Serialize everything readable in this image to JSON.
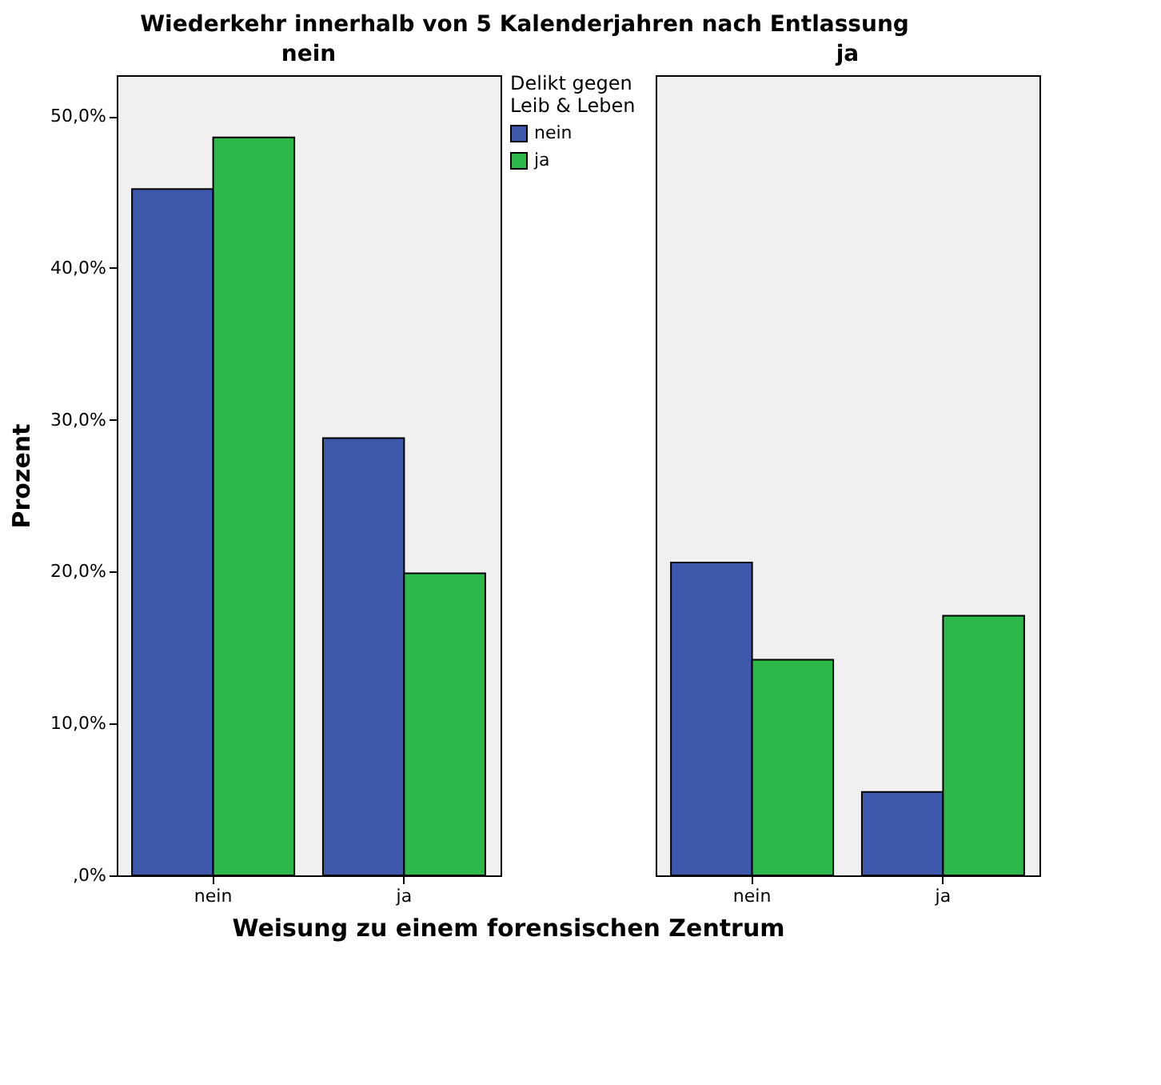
{
  "chart_data": [
    {
      "type": "bar",
      "title": "Wiederkehr innerhalb von 5 Kalenderjahren nach Entlassung",
      "subtitle": "nein",
      "xlabel": "Weisung zu einem forensischen Zentrum",
      "ylabel": "Prozent",
      "categories": [
        "nein",
        "ja"
      ],
      "legend_title": "Delikt gegen Leib & Leben",
      "legend": "right",
      "series": [
        {
          "name": "nein",
          "color": "#3e58ac",
          "values": [
            45.2,
            28.8
          ]
        },
        {
          "name": "ja",
          "color": "#2db84a",
          "values": [
            48.6,
            19.9
          ]
        }
      ],
      "ylim": [
        0,
        52.7
      ],
      "yticks": [
        {
          "value": 0,
          "label": ",0%"
        },
        {
          "value": 10,
          "label": "10,0%"
        },
        {
          "value": 20,
          "label": "20,0%"
        },
        {
          "value": 30,
          "label": "30,0%"
        },
        {
          "value": 40,
          "label": "40,0%"
        },
        {
          "value": 50,
          "label": "50,0%"
        }
      ]
    },
    {
      "type": "bar",
      "subtitle": "ja",
      "categories": [
        "nein",
        "ja"
      ],
      "series": [
        {
          "color": "#3e58ac",
          "values": [
            20.6,
            5.5
          ]
        },
        {
          "color": "#2db84a",
          "values": [
            14.2,
            17.1
          ]
        }
      ],
      "ylim": [
        0,
        52.7
      ],
      "tick_labels": "x"
    }
  ]
}
